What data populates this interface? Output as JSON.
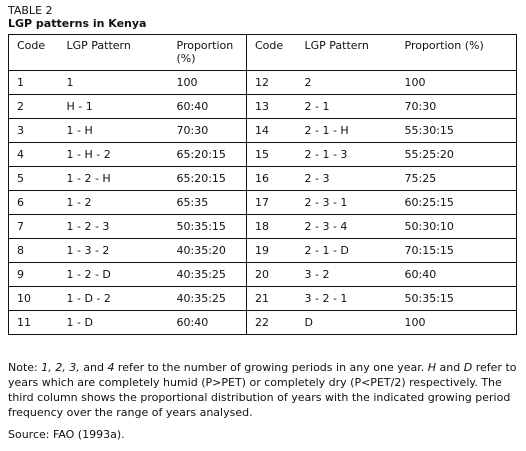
{
  "header": {
    "label": "TABLE 2",
    "title": "LGP patterns in Kenya"
  },
  "table": {
    "columns": [
      "Code",
      "LGP Pattern",
      "Proportion (%)",
      "Code",
      "LGP Pattern",
      "Proportion (%)"
    ],
    "rows": [
      [
        "1",
        "1",
        "100",
        "12",
        "2",
        "100"
      ],
      [
        "2",
        "H - 1",
        "60:40",
        "13",
        "2 - 1",
        "70:30"
      ],
      [
        "3",
        "1 - H",
        "70:30",
        "14",
        "2 - 1 - H",
        "55:30:15"
      ],
      [
        "4",
        "1 - H - 2",
        "65:20:15",
        "15",
        "2 - 1 - 3",
        "55:25:20"
      ],
      [
        "5",
        "1 - 2 - H",
        "65:20:15",
        "16",
        "2 - 3",
        "75:25"
      ],
      [
        "6",
        "1 - 2",
        "65:35",
        "17",
        "2 - 3 - 1",
        "60:25:15"
      ],
      [
        "7",
        "1 - 2 - 3",
        "50:35:15",
        "18",
        "2 - 3 - 4",
        "50:30:10"
      ],
      [
        "8",
        "1 - 3 - 2",
        "40:35:20",
        "19",
        "2 - 1 - D",
        "70:15:15"
      ],
      [
        "9",
        "1 - 2 - D",
        "40:35:25",
        "20",
        "3 - 2",
        "60:40"
      ],
      [
        "10",
        "1 - D - 2",
        "40:35:25",
        "21",
        "3 - 2 - 1",
        "50:35:15"
      ],
      [
        "11",
        "1 - D",
        "60:40",
        "22",
        "D",
        "100"
      ]
    ]
  },
  "note": [
    {
      "text": "Note: ",
      "italic": false
    },
    {
      "text": "1, 2, 3,",
      "italic": true
    },
    {
      "text": " and ",
      "italic": false
    },
    {
      "text": "4",
      "italic": true
    },
    {
      "text": " refer to the number of growing periods in any one year. ",
      "italic": false
    },
    {
      "text": "H",
      "italic": true
    },
    {
      "text": " and ",
      "italic": false
    },
    {
      "text": "D",
      "italic": true
    },
    {
      "text": " refer to years which are completely humid (P>PET) or completely dry (P<PET/2) respectively.  The third column shows the proportional distribution of years with the indicated growing period frequency over the range of years analysed.",
      "italic": false
    }
  ],
  "source": "Source: FAO (1993a)."
}
